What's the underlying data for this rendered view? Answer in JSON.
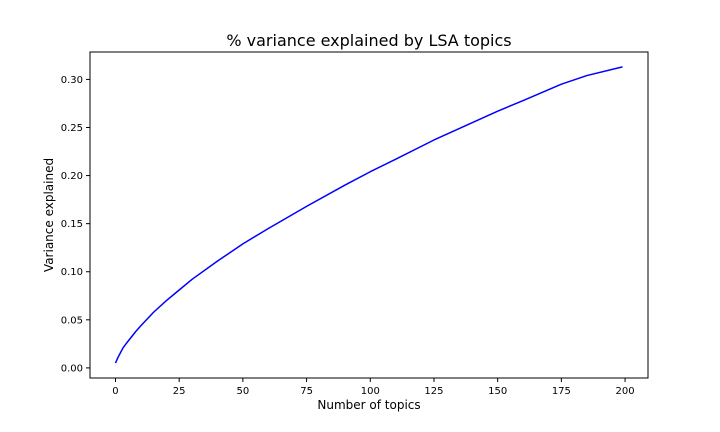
{
  "chart_data": {
    "type": "line",
    "title": "% variance explained by LSA topics",
    "xlabel": "Number of topics",
    "ylabel": "Variance explained",
    "xlim": [
      -10,
      209
    ],
    "ylim": [
      -0.0105,
      0.3285
    ],
    "xticks": [
      0,
      25,
      50,
      75,
      100,
      125,
      150,
      175,
      200
    ],
    "xtick_labels": [
      "0",
      "25",
      "50",
      "75",
      "100",
      "125",
      "150",
      "175",
      "200"
    ],
    "yticks": [
      0.0,
      0.05,
      0.1,
      0.15,
      0.2,
      0.25,
      0.3
    ],
    "ytick_labels": [
      "0.00",
      "0.05",
      "0.10",
      "0.15",
      "0.20",
      "0.25",
      "0.30"
    ],
    "grid": false,
    "series": [
      {
        "name": "variance explained",
        "color": "#0000ff",
        "x": [
          0,
          1,
          2,
          3,
          5,
          8,
          10,
          15,
          20,
          25,
          30,
          40,
          50,
          60,
          75,
          90,
          100,
          110,
          125,
          140,
          150,
          160,
          175,
          185,
          199
        ],
        "y": [
          0.005,
          0.011,
          0.016,
          0.021,
          0.028,
          0.038,
          0.044,
          0.058,
          0.07,
          0.081,
          0.092,
          0.111,
          0.129,
          0.145,
          0.168,
          0.19,
          0.204,
          0.217,
          0.237,
          0.255,
          0.267,
          0.278,
          0.295,
          0.304,
          0.313
        ]
      }
    ]
  }
}
